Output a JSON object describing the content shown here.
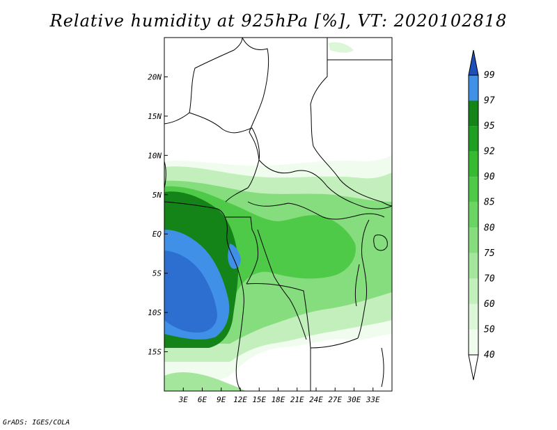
{
  "title": "Relative humidity at 925hPa [%], VT: 2020102818",
  "credit": "GrADS: IGES/COLA",
  "map": {
    "lon_range": [
      0,
      36
    ],
    "lat_range": [
      -20,
      25
    ],
    "x_ticks": [
      {
        "value": 3,
        "label": "3E"
      },
      {
        "value": 6,
        "label": "6E"
      },
      {
        "value": 9,
        "label": "9E"
      },
      {
        "value": 12,
        "label": "12E"
      },
      {
        "value": 15,
        "label": "15E"
      },
      {
        "value": 18,
        "label": "18E"
      },
      {
        "value": 21,
        "label": "21E"
      },
      {
        "value": 24,
        "label": "24E"
      },
      {
        "value": 27,
        "label": "27E"
      },
      {
        "value": 30,
        "label": "30E"
      },
      {
        "value": 33,
        "label": "33E"
      }
    ],
    "y_ticks": [
      {
        "value": 20,
        "label": "20N"
      },
      {
        "value": 15,
        "label": "15N"
      },
      {
        "value": 10,
        "label": "10N"
      },
      {
        "value": 5,
        "label": "5N"
      },
      {
        "value": 0,
        "label": "EQ"
      },
      {
        "value": -5,
        "label": "5S"
      },
      {
        "value": -10,
        "label": "10S"
      },
      {
        "value": -15,
        "label": "15S"
      }
    ]
  },
  "colorbar": {
    "levels": [
      "40",
      "50",
      "60",
      "70",
      "75",
      "80",
      "85",
      "90",
      "92",
      "95",
      "97",
      "99"
    ],
    "colors": [
      "#f0fcee",
      "#dcf6d8",
      "#c2efbc",
      "#a4e69c",
      "#86dd7e",
      "#6bd462",
      "#4fca48",
      "#35ba32",
      "#1f9f22",
      "#148419",
      "#3f90e6",
      "#2d6fd0",
      "#1e4fb8"
    ]
  }
}
